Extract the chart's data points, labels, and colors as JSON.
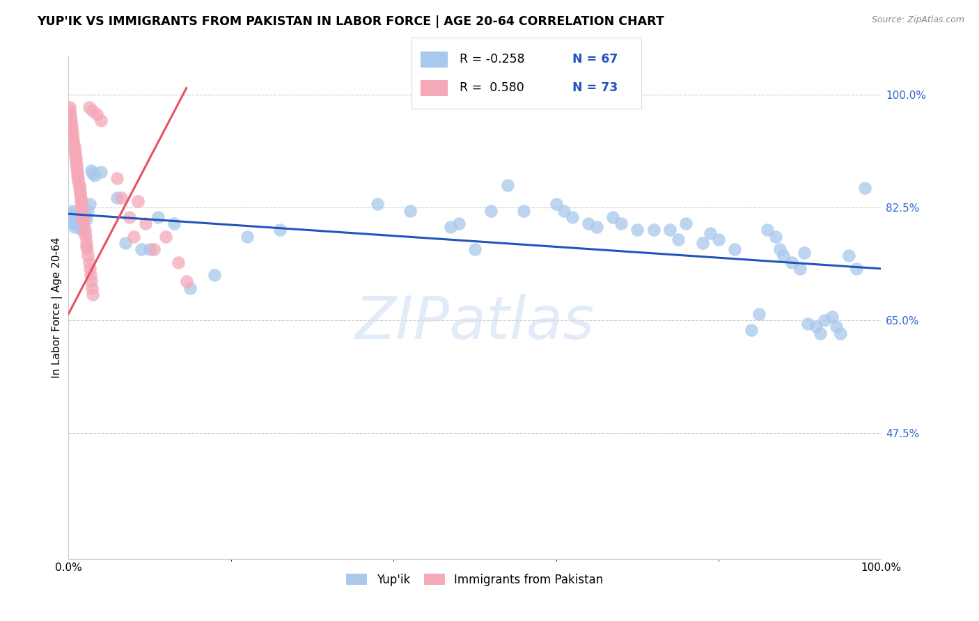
{
  "title": "YUP'IK VS IMMIGRANTS FROM PAKISTAN IN LABOR FORCE | AGE 20-64 CORRELATION CHART",
  "source": "Source: ZipAtlas.com",
  "ylabel": "In Labor Force | Age 20-64",
  "ytick_labels": [
    "100.0%",
    "82.5%",
    "65.0%",
    "47.5%"
  ],
  "ytick_values": [
    1.0,
    0.825,
    0.65,
    0.475
  ],
  "xlim": [
    0.0,
    1.0
  ],
  "ylim": [
    0.28,
    1.06
  ],
  "watermark": "ZIPatlas",
  "blue_color": "#A8C8EC",
  "pink_color": "#F4A8B8",
  "blue_line_color": "#2255BB",
  "pink_line_color": "#E85060",
  "blue_trend_x": [
    0.0,
    1.0
  ],
  "blue_trend_y": [
    0.815,
    0.73
  ],
  "pink_trend_x": [
    0.0,
    0.145
  ],
  "pink_trend_y": [
    0.66,
    1.01
  ],
  "yupik_points": [
    [
      0.002,
      0.815
    ],
    [
      0.003,
      0.808
    ],
    [
      0.004,
      0.812
    ],
    [
      0.005,
      0.82
    ],
    [
      0.006,
      0.8
    ],
    [
      0.007,
      0.795
    ],
    [
      0.008,
      0.805
    ],
    [
      0.01,
      0.81
    ],
    [
      0.012,
      0.8
    ],
    [
      0.014,
      0.795
    ],
    [
      0.016,
      0.79
    ],
    [
      0.018,
      0.803
    ],
    [
      0.02,
      0.813
    ],
    [
      0.022,
      0.808
    ],
    [
      0.024,
      0.82
    ],
    [
      0.026,
      0.83
    ],
    [
      0.028,
      0.882
    ],
    [
      0.03,
      0.878
    ],
    [
      0.032,
      0.875
    ],
    [
      0.04,
      0.88
    ],
    [
      0.06,
      0.84
    ],
    [
      0.07,
      0.77
    ],
    [
      0.09,
      0.76
    ],
    [
      0.1,
      0.76
    ],
    [
      0.11,
      0.81
    ],
    [
      0.13,
      0.8
    ],
    [
      0.15,
      0.7
    ],
    [
      0.18,
      0.72
    ],
    [
      0.22,
      0.78
    ],
    [
      0.26,
      0.79
    ],
    [
      0.38,
      0.83
    ],
    [
      0.42,
      0.82
    ],
    [
      0.47,
      0.795
    ],
    [
      0.48,
      0.8
    ],
    [
      0.5,
      0.76
    ],
    [
      0.52,
      0.82
    ],
    [
      0.54,
      0.86
    ],
    [
      0.56,
      0.82
    ],
    [
      0.6,
      0.83
    ],
    [
      0.61,
      0.82
    ],
    [
      0.62,
      0.81
    ],
    [
      0.64,
      0.8
    ],
    [
      0.65,
      0.795
    ],
    [
      0.67,
      0.81
    ],
    [
      0.68,
      0.8
    ],
    [
      0.7,
      0.79
    ],
    [
      0.72,
      0.79
    ],
    [
      0.74,
      0.79
    ],
    [
      0.75,
      0.775
    ],
    [
      0.76,
      0.8
    ],
    [
      0.78,
      0.77
    ],
    [
      0.79,
      0.785
    ],
    [
      0.8,
      0.775
    ],
    [
      0.82,
      0.76
    ],
    [
      0.84,
      0.635
    ],
    [
      0.85,
      0.66
    ],
    [
      0.86,
      0.79
    ],
    [
      0.87,
      0.78
    ],
    [
      0.875,
      0.76
    ],
    [
      0.88,
      0.75
    ],
    [
      0.89,
      0.74
    ],
    [
      0.9,
      0.73
    ],
    [
      0.905,
      0.755
    ],
    [
      0.91,
      0.645
    ],
    [
      0.92,
      0.64
    ],
    [
      0.925,
      0.63
    ],
    [
      0.93,
      0.65
    ],
    [
      0.94,
      0.655
    ],
    [
      0.945,
      0.64
    ],
    [
      0.95,
      0.63
    ],
    [
      0.96,
      0.75
    ],
    [
      0.97,
      0.73
    ],
    [
      0.98,
      0.855
    ]
  ],
  "pakistan_points": [
    [
      0.001,
      0.98
    ],
    [
      0.002,
      0.97
    ],
    [
      0.003,
      0.96
    ],
    [
      0.004,
      0.95
    ],
    [
      0.005,
      0.94
    ],
    [
      0.006,
      0.93
    ],
    [
      0.007,
      0.92
    ],
    [
      0.008,
      0.91
    ],
    [
      0.009,
      0.9
    ],
    [
      0.01,
      0.89
    ],
    [
      0.011,
      0.88
    ],
    [
      0.012,
      0.87
    ],
    [
      0.013,
      0.86
    ],
    [
      0.014,
      0.85
    ],
    [
      0.015,
      0.84
    ],
    [
      0.016,
      0.83
    ],
    [
      0.017,
      0.82
    ],
    [
      0.018,
      0.81
    ],
    [
      0.019,
      0.8
    ],
    [
      0.02,
      0.79
    ],
    [
      0.021,
      0.78
    ],
    [
      0.022,
      0.77
    ],
    [
      0.023,
      0.76
    ],
    [
      0.024,
      0.75
    ],
    [
      0.025,
      0.74
    ],
    [
      0.026,
      0.73
    ],
    [
      0.027,
      0.72
    ],
    [
      0.028,
      0.71
    ],
    [
      0.029,
      0.7
    ],
    [
      0.03,
      0.69
    ],
    [
      0.001,
      0.975
    ],
    [
      0.003,
      0.955
    ],
    [
      0.005,
      0.935
    ],
    [
      0.007,
      0.915
    ],
    [
      0.009,
      0.895
    ],
    [
      0.011,
      0.875
    ],
    [
      0.013,
      0.855
    ],
    [
      0.015,
      0.835
    ],
    [
      0.017,
      0.815
    ],
    [
      0.002,
      0.965
    ],
    [
      0.004,
      0.945
    ],
    [
      0.006,
      0.925
    ],
    [
      0.008,
      0.905
    ],
    [
      0.01,
      0.885
    ],
    [
      0.012,
      0.865
    ],
    [
      0.014,
      0.845
    ],
    [
      0.016,
      0.825
    ],
    [
      0.018,
      0.805
    ],
    [
      0.02,
      0.785
    ],
    [
      0.022,
      0.765
    ],
    [
      0.025,
      0.98
    ],
    [
      0.03,
      0.975
    ],
    [
      0.035,
      0.97
    ],
    [
      0.04,
      0.96
    ],
    [
      0.06,
      0.87
    ],
    [
      0.065,
      0.84
    ],
    [
      0.075,
      0.81
    ],
    [
      0.08,
      0.78
    ],
    [
      0.085,
      0.835
    ],
    [
      0.095,
      0.8
    ],
    [
      0.105,
      0.76
    ],
    [
      0.12,
      0.78
    ],
    [
      0.135,
      0.74
    ],
    [
      0.145,
      0.71
    ]
  ]
}
